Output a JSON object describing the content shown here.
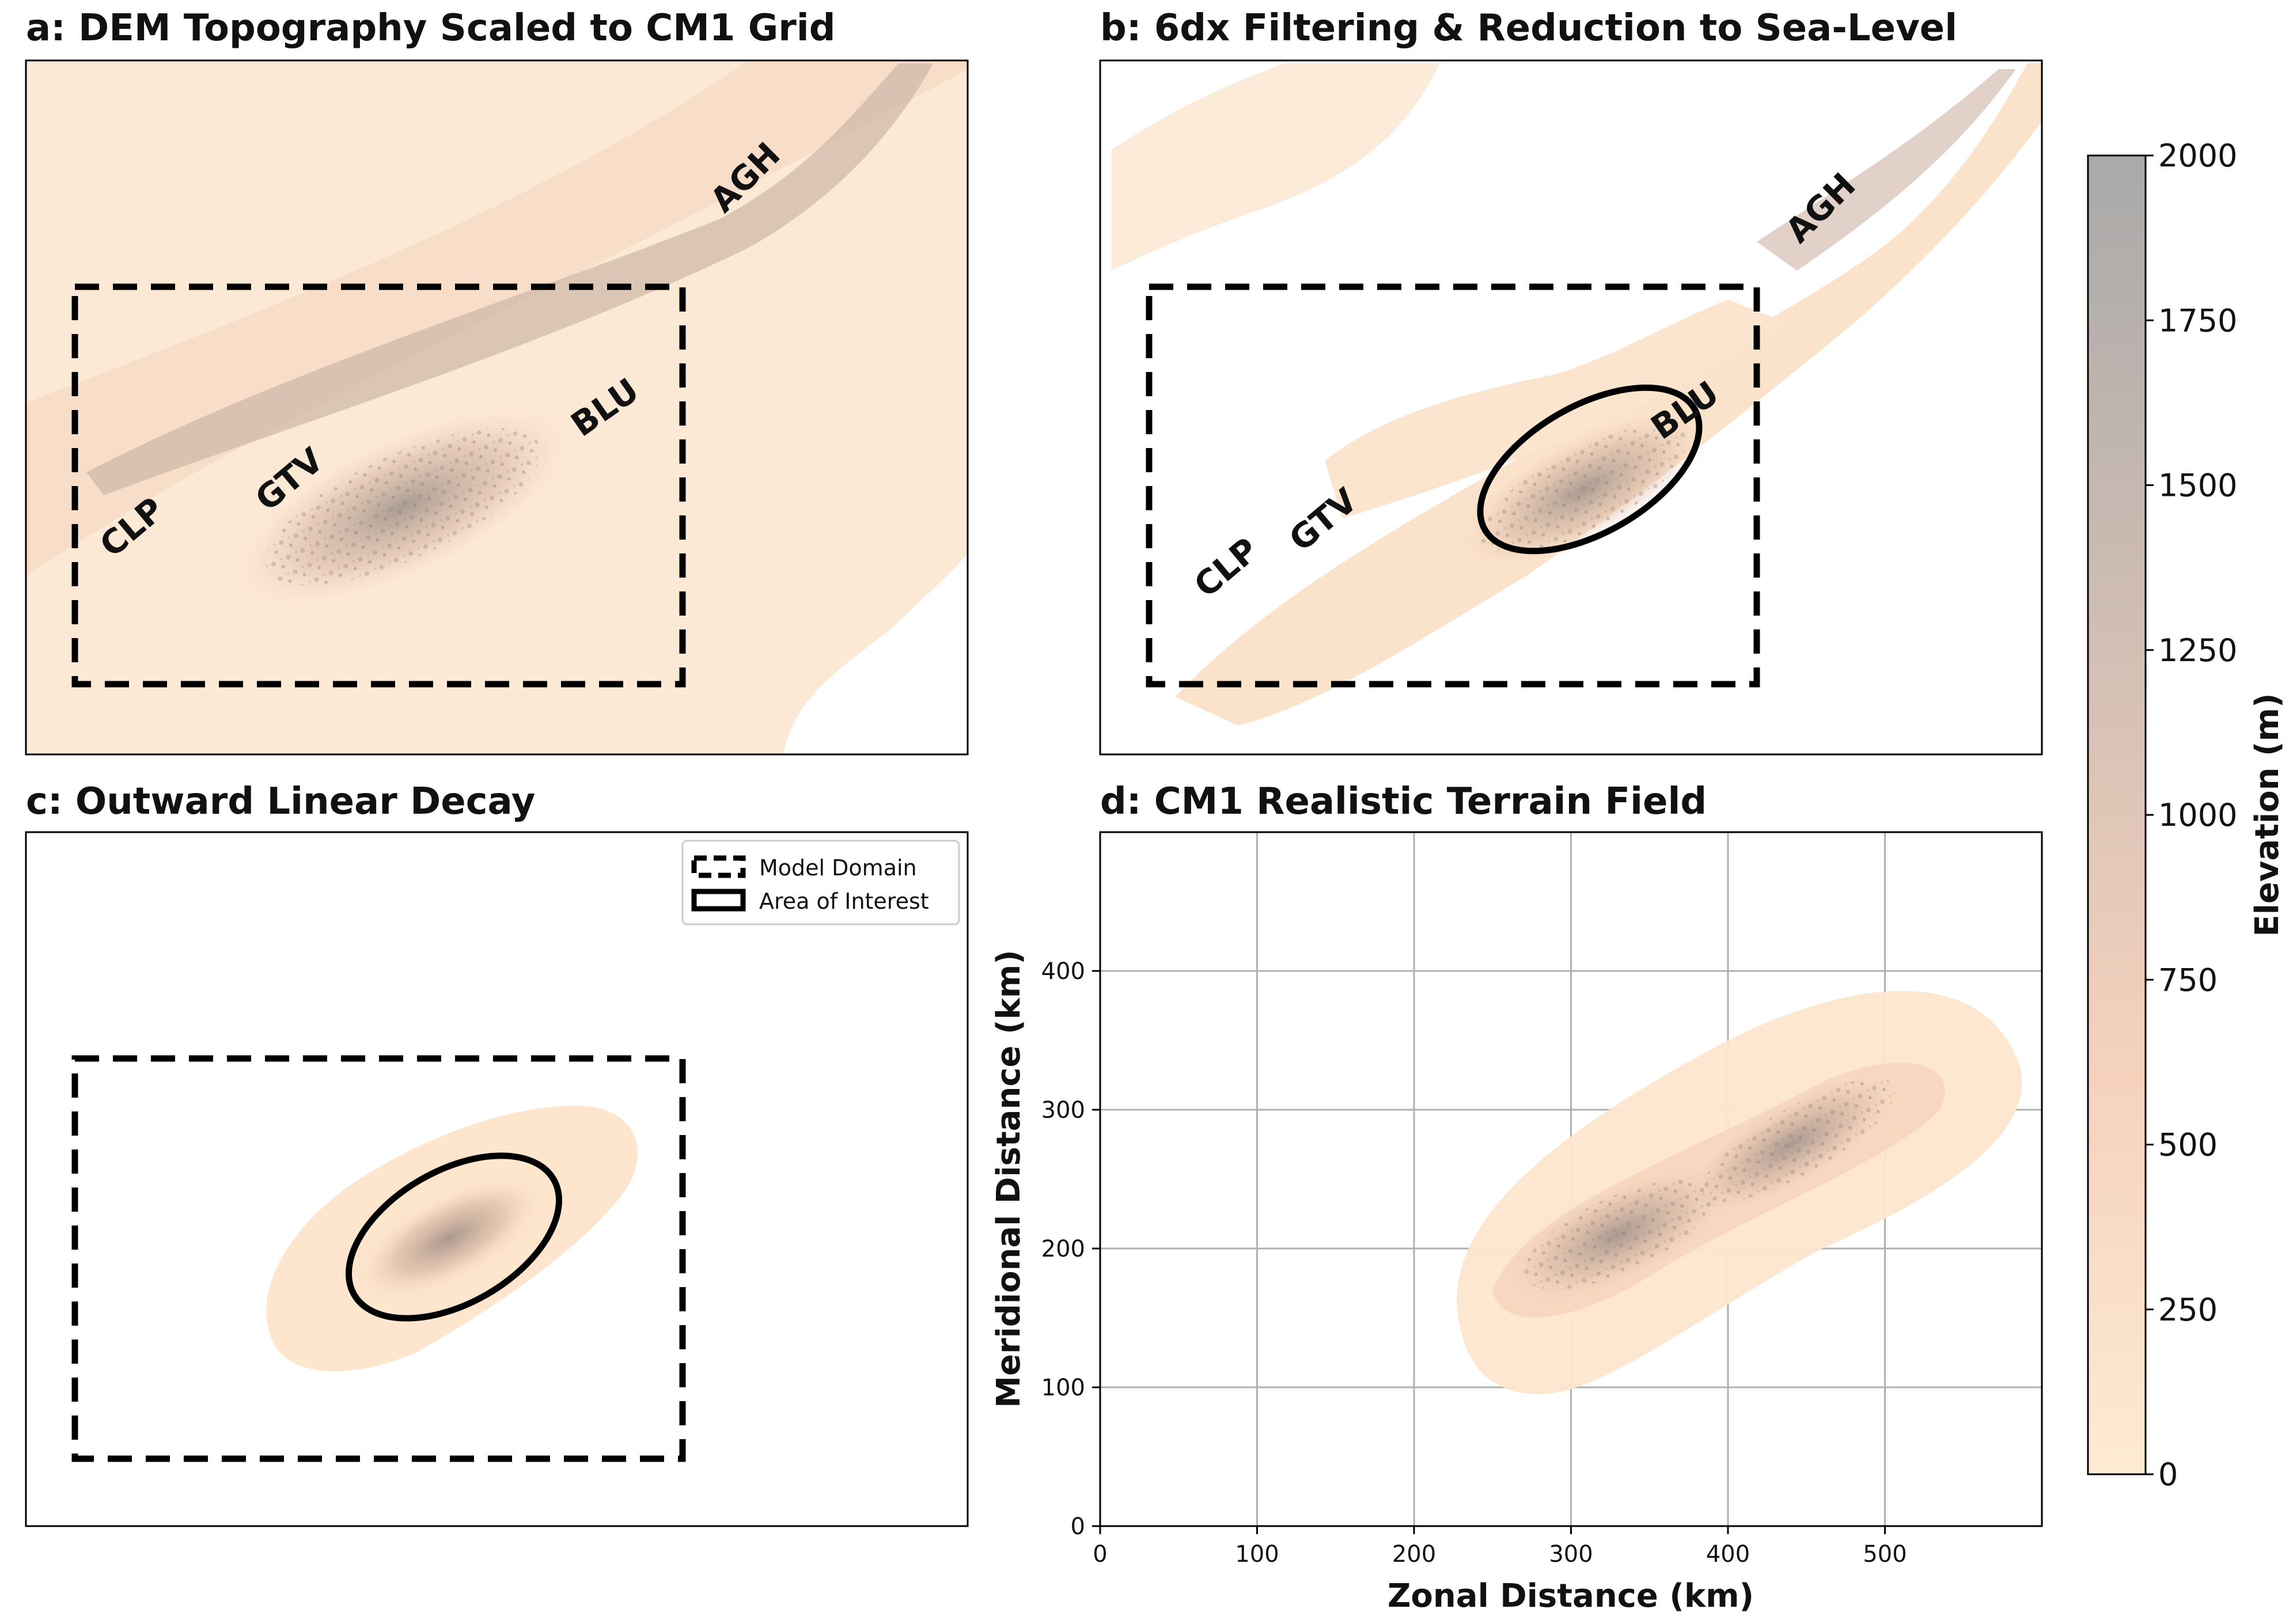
{
  "panels": {
    "a": {
      "title": "a: DEM Topography Scaled to CM1 Grid",
      "labels": [
        "AGH",
        "BLU",
        "GTV",
        "CLP"
      ]
    },
    "b": {
      "title": "b: 6dx Filtering & Reduction to Sea-Level",
      "labels": [
        "AGH",
        "BLU",
        "GTV",
        "CLP"
      ]
    },
    "c": {
      "title": "c: Outward Linear Decay",
      "legend": [
        "Model Domain",
        "Area of Interest"
      ]
    },
    "d": {
      "title": "d: CM1 Realistic Terrain Field"
    }
  },
  "colorbar": {
    "label": "Elevation (m)",
    "ticks": [
      "0",
      "250",
      "500",
      "750",
      "1000",
      "1250",
      "1500",
      "1750",
      "2000"
    ],
    "colors": {
      "low": "#fdebd2",
      "mid": "#f6d2bd",
      "high": "#a9a9a9"
    }
  },
  "chart_data": {
    "type": "heatmap",
    "title": "d: CM1 Realistic Terrain Field",
    "xlabel": "Zonal Distance (km)",
    "ylabel": "Meridional Distance (km)",
    "xlim": [
      0,
      600
    ],
    "ylim": [
      0,
      500
    ],
    "xticks": [
      0,
      100,
      200,
      300,
      400,
      500
    ],
    "yticks": [
      0,
      100,
      200,
      300,
      400
    ],
    "grid": true,
    "zlabel": "Elevation (m)",
    "zlim": [
      0,
      2000
    ]
  }
}
